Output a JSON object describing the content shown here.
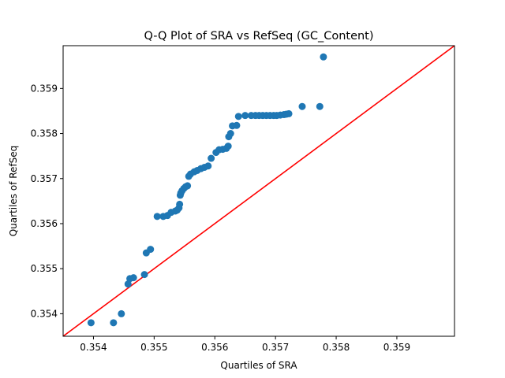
{
  "chart_data": {
    "type": "scatter",
    "title": "Q-Q Plot of SRA vs RefSeq (GC_Content)",
    "xlabel": "Quartiles of SRA",
    "ylabel": "Quartiles of RefSeq",
    "xlim": [
      0.3535,
      0.35995
    ],
    "ylim": [
      0.3535,
      0.35995
    ],
    "xticks": [
      "0.354",
      "0.355",
      "0.356",
      "0.357",
      "0.358",
      "0.359"
    ],
    "yticks": [
      "0.354",
      "0.355",
      "0.356",
      "0.357",
      "0.358",
      "0.359"
    ],
    "grid": false,
    "legend": "none",
    "reference_line": {
      "from": [
        0.3535,
        0.3535
      ],
      "to": [
        0.35995,
        0.35995
      ],
      "color": "#ff0000"
    },
    "marker_color": "#1f77b4",
    "series": [
      {
        "points": [
          [
            0.35396,
            0.3538
          ],
          [
            0.35433,
            0.3538
          ],
          [
            0.35446,
            0.354
          ],
          [
            0.35457,
            0.35466
          ],
          [
            0.3546,
            0.35478
          ],
          [
            0.35466,
            0.3548
          ],
          [
            0.35484,
            0.35487
          ],
          [
            0.35487,
            0.35535
          ],
          [
            0.35494,
            0.35543
          ],
          [
            0.35505,
            0.35616
          ],
          [
            0.35515,
            0.35616
          ],
          [
            0.35522,
            0.35618
          ],
          [
            0.35528,
            0.35625
          ],
          [
            0.35535,
            0.35628
          ],
          [
            0.35538,
            0.3563
          ],
          [
            0.35541,
            0.35635
          ],
          [
            0.35542,
            0.35643
          ],
          [
            0.35543,
            0.35663
          ],
          [
            0.35544,
            0.35668
          ],
          [
            0.35546,
            0.35673
          ],
          [
            0.35549,
            0.35678
          ],
          [
            0.35552,
            0.35682
          ],
          [
            0.35555,
            0.35684
          ],
          [
            0.35557,
            0.35705
          ],
          [
            0.3556,
            0.3571
          ],
          [
            0.35566,
            0.35715
          ],
          [
            0.35571,
            0.35718
          ],
          [
            0.35577,
            0.35722
          ],
          [
            0.35583,
            0.35725
          ],
          [
            0.35589,
            0.35728
          ],
          [
            0.35594,
            0.35745
          ],
          [
            0.35602,
            0.35758
          ],
          [
            0.35607,
            0.35764
          ],
          [
            0.35613,
            0.35765
          ],
          [
            0.35619,
            0.35767
          ],
          [
            0.35622,
            0.35772
          ],
          [
            0.35623,
            0.35793
          ],
          [
            0.35626,
            0.358
          ],
          [
            0.35629,
            0.35817
          ],
          [
            0.35636,
            0.35818
          ],
          [
            0.35639,
            0.35838
          ],
          [
            0.3565,
            0.3584
          ],
          [
            0.3566,
            0.3584
          ],
          [
            0.35667,
            0.3584
          ],
          [
            0.35673,
            0.3584
          ],
          [
            0.35679,
            0.3584
          ],
          [
            0.35685,
            0.3584
          ],
          [
            0.35691,
            0.3584
          ],
          [
            0.35697,
            0.3584
          ],
          [
            0.35702,
            0.3584
          ],
          [
            0.35708,
            0.35841
          ],
          [
            0.35714,
            0.35842
          ],
          [
            0.35718,
            0.35843
          ],
          [
            0.35722,
            0.35844
          ],
          [
            0.35744,
            0.3586
          ],
          [
            0.35773,
            0.3586
          ],
          [
            0.35779,
            0.3597
          ]
        ]
      }
    ]
  }
}
